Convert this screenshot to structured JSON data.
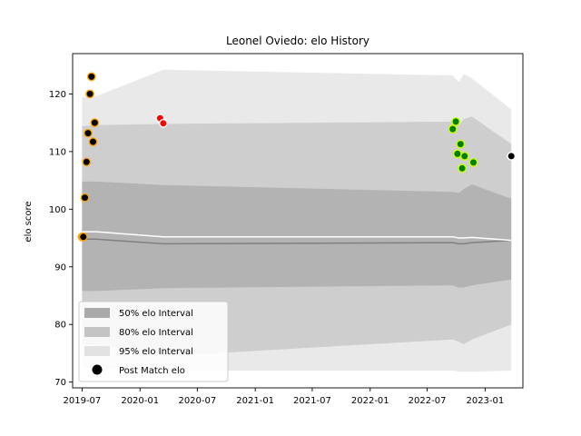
{
  "chart_data": {
    "type": "scatter",
    "title": "Leonel Oviedo: elo History",
    "xlabel": "",
    "ylabel": "elo score",
    "xlim": [
      "2019-06-01",
      "2023-05-01"
    ],
    "ylim": [
      69,
      127
    ],
    "x_ticks": [
      "2019-07",
      "2020-01",
      "2020-07",
      "2021-01",
      "2021-07",
      "2022-01",
      "2022-07",
      "2023-01"
    ],
    "y_ticks": [
      70,
      80,
      90,
      100,
      110,
      120
    ],
    "legend_position": "lower-left",
    "legend": [
      {
        "label": "50% elo Interval",
        "swatch": "#a9a9a9"
      },
      {
        "label": "80% elo Interval",
        "swatch": "#c4c4c4"
      },
      {
        "label": "95% elo Interval",
        "swatch": "#e2e2e2"
      },
      {
        "label": "Post Match elo",
        "swatch": "#000000"
      }
    ],
    "interval_x": [
      "2019-07-01",
      "2019-08-15",
      "2020-03-15",
      "2022-09-20",
      "2022-10-10",
      "2022-10-25",
      "2022-11-20",
      "2023-03-25"
    ],
    "series": [
      {
        "kind": "band",
        "level": "95%",
        "color": "#e2e2e2",
        "upper": [
          119.4,
          119.6,
          124.2,
          123.2,
          122.0,
          123.5,
          122.7,
          117.3
        ],
        "lower": [
          72.5,
          72.5,
          72.0,
          72.0,
          71.8,
          71.8,
          71.8,
          72.0
        ]
      },
      {
        "kind": "band",
        "level": "80%",
        "color": "#c4c4c4",
        "upper": [
          114.4,
          114.6,
          114.8,
          115.2,
          114.6,
          115.6,
          116.1,
          111.3
        ],
        "lower": [
          76.5,
          76.5,
          74.5,
          77.4,
          77.0,
          76.6,
          77.4,
          80.0
        ]
      },
      {
        "kind": "band",
        "level": "50%",
        "color": "#a9a9a9",
        "upper": [
          104.8,
          104.8,
          104.2,
          103.0,
          102.8,
          103.5,
          104.3,
          101.8
        ],
        "lower": [
          85.8,
          85.8,
          86.3,
          86.8,
          86.4,
          86.4,
          86.8,
          87.8
        ]
      },
      {
        "kind": "line",
        "role": "median",
        "color": "#808080",
        "values": [
          94.8,
          94.8,
          94.0,
          94.2,
          94.0,
          94.0,
          94.2,
          94.6
        ]
      },
      {
        "kind": "line",
        "role": "mean",
        "color": "#ffffff",
        "values": [
          96.1,
          96.1,
          95.2,
          95.2,
          95.0,
          95.0,
          95.1,
          94.6
        ]
      }
    ],
    "points": [
      {
        "x": "2019-07-01",
        "y": 95.2,
        "fill": "#000000",
        "edge": "#ffa500"
      },
      {
        "x": "2019-07-05",
        "y": 95.2,
        "fill": "#000000",
        "edge": "#ffa500"
      },
      {
        "x": "2019-07-10",
        "y": 102.0,
        "fill": "#000000",
        "edge": "#ffa500"
      },
      {
        "x": "2019-07-15",
        "y": 108.2,
        "fill": "#000000",
        "edge": "#ffa500"
      },
      {
        "x": "2019-07-20",
        "y": 113.2,
        "fill": "#000000",
        "edge": "#ffa500"
      },
      {
        "x": "2019-07-26",
        "y": 120.0,
        "fill": "#000000",
        "edge": "#ffa500"
      },
      {
        "x": "2019-07-31",
        "y": 123.0,
        "fill": "#000000",
        "edge": "#ffa500"
      },
      {
        "x": "2019-08-05",
        "y": 111.7,
        "fill": "#000000",
        "edge": "#ffa500"
      },
      {
        "x": "2019-08-10",
        "y": 115.0,
        "fill": "#000000",
        "edge": "#ffa500"
      },
      {
        "x": "2020-03-05",
        "y": 115.8,
        "fill": "#ff0000",
        "edge": "#ffffff"
      },
      {
        "x": "2020-03-15",
        "y": 114.9,
        "fill": "#ff0000",
        "edge": "#ffffff"
      },
      {
        "x": "2022-09-20",
        "y": 113.9,
        "fill": "#008000",
        "edge": "#ccff00"
      },
      {
        "x": "2022-09-30",
        "y": 115.2,
        "fill": "#008000",
        "edge": "#ccff00"
      },
      {
        "x": "2022-10-05",
        "y": 109.6,
        "fill": "#008000",
        "edge": "#ccff00"
      },
      {
        "x": "2022-10-15",
        "y": 111.3,
        "fill": "#008000",
        "edge": "#ccff00"
      },
      {
        "x": "2022-10-20",
        "y": 107.1,
        "fill": "#008000",
        "edge": "#ccff00"
      },
      {
        "x": "2022-10-28",
        "y": 109.2,
        "fill": "#008000",
        "edge": "#ccff00"
      },
      {
        "x": "2022-11-25",
        "y": 108.1,
        "fill": "#008000",
        "edge": "#ccff00"
      },
      {
        "x": "2023-03-25",
        "y": 109.2,
        "fill": "#000000",
        "edge": "#ffffff"
      }
    ]
  }
}
